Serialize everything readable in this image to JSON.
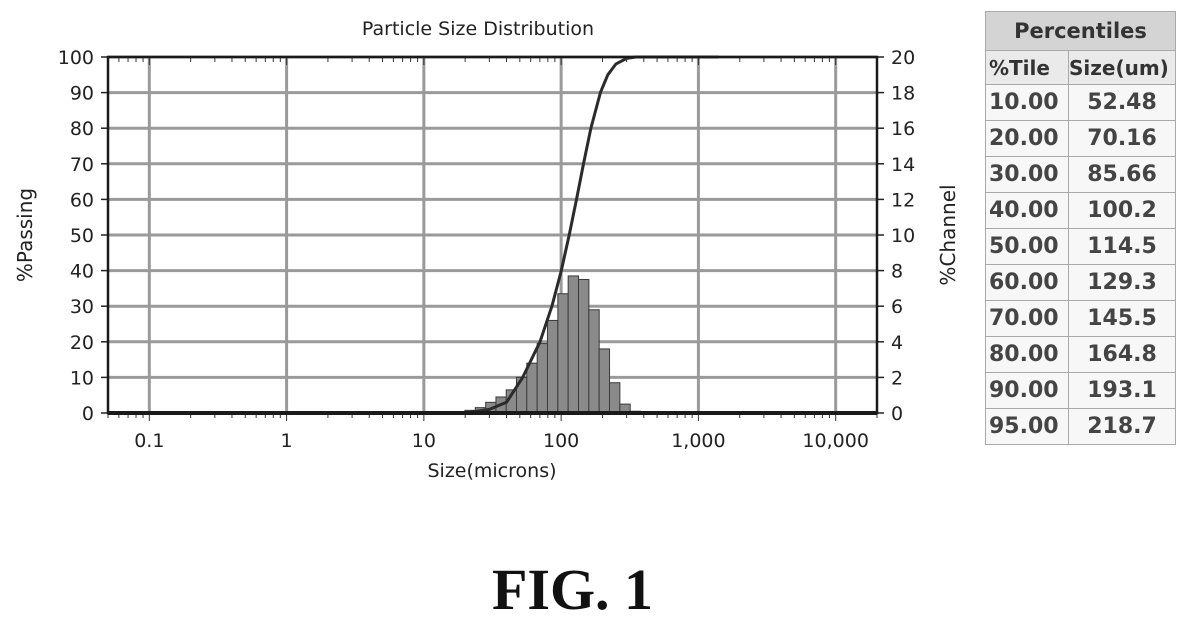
{
  "chart_data": {
    "type": "bar",
    "title": "Particle Size Distribution",
    "xlabel": "Size(microns)",
    "ylabel_left": "%Passing",
    "ylabel_right": "%Channel",
    "x_scale": "log",
    "xlim": [
      0.05,
      20000
    ],
    "x_ticks": [
      {
        "value": 0.1,
        "label": "0.1"
      },
      {
        "value": 1,
        "label": "1"
      },
      {
        "value": 10,
        "label": "10"
      },
      {
        "value": 100,
        "label": "100"
      },
      {
        "value": 1000,
        "label": "1,000"
      },
      {
        "value": 10000,
        "label": "10,000"
      }
    ],
    "y_left": {
      "lim": [
        0,
        100
      ],
      "ticks": [
        "0",
        "10",
        "20",
        "30",
        "40",
        "50",
        "60",
        "70",
        "80",
        "90",
        "100"
      ]
    },
    "y_right": {
      "lim": [
        0,
        20
      ],
      "ticks": [
        "0",
        "2",
        "4",
        "6",
        "8",
        "10",
        "12",
        "14",
        "16",
        "18",
        "20"
      ]
    },
    "grid": true,
    "series": [
      {
        "kind": "bar",
        "axis": "right",
        "bins": [
          {
            "x": 19.9,
            "y": 0.15
          },
          {
            "x": 23.7,
            "y": 0.3
          },
          {
            "x": 28.2,
            "y": 0.6
          },
          {
            "x": 33.5,
            "y": 0.9
          },
          {
            "x": 39.8,
            "y": 1.3
          },
          {
            "x": 47.3,
            "y": 2.0
          },
          {
            "x": 56.2,
            "y": 2.8
          },
          {
            "x": 66.9,
            "y": 3.9
          },
          {
            "x": 79.5,
            "y": 5.2
          },
          {
            "x": 94.6,
            "y": 6.7
          },
          {
            "x": 112.5,
            "y": 7.7
          },
          {
            "x": 133.8,
            "y": 7.5
          },
          {
            "x": 159.1,
            "y": 5.8
          },
          {
            "x": 189.2,
            "y": 3.6
          },
          {
            "x": 225.0,
            "y": 1.7
          },
          {
            "x": 267.6,
            "y": 0.5
          },
          {
            "x": 318.2,
            "y": 0.1
          }
        ]
      },
      {
        "kind": "line",
        "axis": "left",
        "points": [
          {
            "x": 20,
            "y": 0
          },
          {
            "x": 30,
            "y": 1
          },
          {
            "x": 40,
            "y": 3
          },
          {
            "x": 52.48,
            "y": 10
          },
          {
            "x": 70.16,
            "y": 20
          },
          {
            "x": 85.66,
            "y": 30
          },
          {
            "x": 100.2,
            "y": 40
          },
          {
            "x": 114.5,
            "y": 50
          },
          {
            "x": 129.3,
            "y": 60
          },
          {
            "x": 145.5,
            "y": 70
          },
          {
            "x": 164.8,
            "y": 80
          },
          {
            "x": 193.1,
            "y": 90
          },
          {
            "x": 218.7,
            "y": 95
          },
          {
            "x": 250,
            "y": 98
          },
          {
            "x": 300,
            "y": 99.6
          },
          {
            "x": 350,
            "y": 100
          },
          {
            "x": 1000,
            "y": 100
          },
          {
            "x": 1400,
            "y": 100
          }
        ]
      }
    ]
  },
  "table": {
    "title": "Percentiles",
    "col_tile": "%Tile",
    "col_size": "Size(um)",
    "rows": [
      {
        "tile": "10.00",
        "size": "52.48"
      },
      {
        "tile": "20.00",
        "size": "70.16"
      },
      {
        "tile": "30.00",
        "size": "85.66"
      },
      {
        "tile": "40.00",
        "size": "100.2"
      },
      {
        "tile": "50.00",
        "size": "114.5"
      },
      {
        "tile": "60.00",
        "size": "129.3"
      },
      {
        "tile": "70.00",
        "size": "145.5"
      },
      {
        "tile": "80.00",
        "size": "164.8"
      },
      {
        "tile": "90.00",
        "size": "193.1"
      },
      {
        "tile": "95.00",
        "size": "218.7"
      }
    ]
  },
  "figure_label": "FIG. 1"
}
